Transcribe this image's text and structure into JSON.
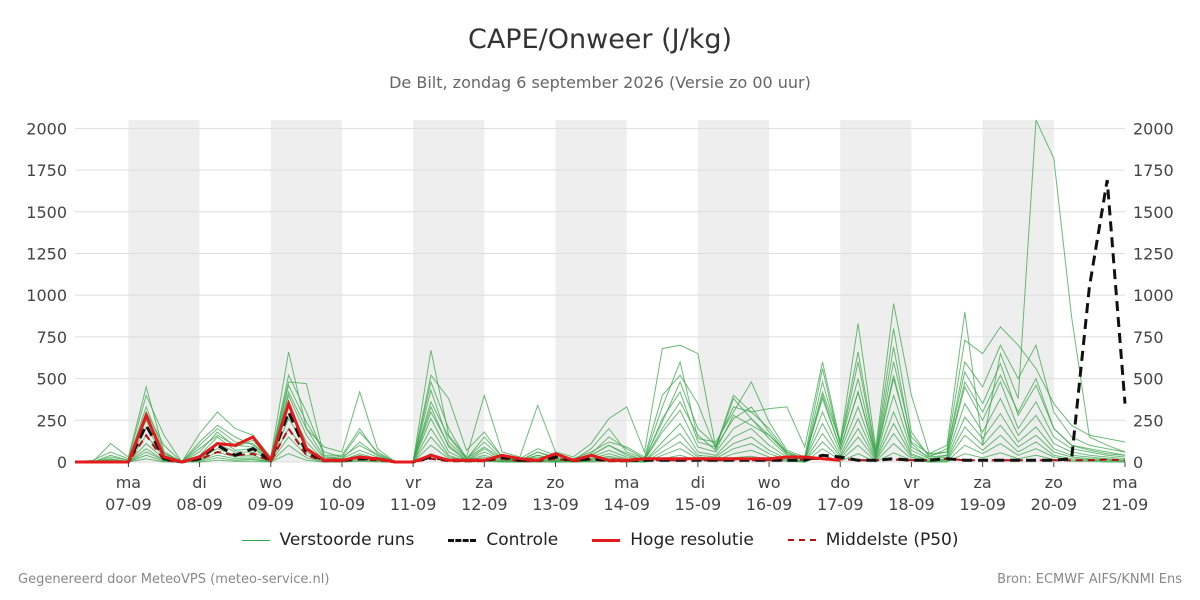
{
  "chart_data": {
    "type": "line",
    "title": "CAPE/Onweer (J/kg)",
    "subtitle": "De Bilt, zondag  6 september 2026 (Versie zo 00 uur)",
    "ylim": [
      0,
      2050
    ],
    "yticks": [
      0,
      250,
      500,
      750,
      1000,
      1250,
      1500,
      1750,
      2000
    ],
    "xlim": [
      -0.75,
      14.0
    ],
    "day_labels": [
      {
        "day": "ma",
        "date": "07-09"
      },
      {
        "day": "di",
        "date": "08-09"
      },
      {
        "day": "wo",
        "date": "09-09"
      },
      {
        "day": "do",
        "date": "10-09"
      },
      {
        "day": "vr",
        "date": "11-09"
      },
      {
        "day": "za",
        "date": "12-09"
      },
      {
        "day": "zo",
        "date": "13-09"
      },
      {
        "day": "ma",
        "date": "14-09"
      },
      {
        "day": "di",
        "date": "15-09"
      },
      {
        "day": "wo",
        "date": "16-09"
      },
      {
        "day": "do",
        "date": "17-09"
      },
      {
        "day": "vr",
        "date": "18-09"
      },
      {
        "day": "za",
        "date": "19-09"
      },
      {
        "day": "zo",
        "date": "20-09"
      },
      {
        "day": "ma",
        "date": "21-09"
      }
    ],
    "shaded_days": [
      0,
      2,
      4,
      6,
      8,
      10,
      12
    ],
    "grid": true,
    "legend_position": "bottom",
    "colors": {
      "ensemble": "#3aa64a",
      "control": "#111111",
      "highres": "#e41a1c",
      "median": "#b01010",
      "shade": "#eeeeee",
      "grid": "#dddddd"
    },
    "highres": {
      "name": "Hoge resolutie",
      "x": [
        -0.75,
        -0.5,
        -0.25,
        0.0,
        0.25,
        0.5,
        0.75,
        1.0,
        1.25,
        1.5,
        1.75,
        2.0,
        2.25,
        2.5,
        2.75,
        3.0,
        3.25,
        3.5,
        3.75,
        4.0,
        4.25,
        4.5,
        4.75,
        5.0,
        5.25,
        5.5,
        5.75,
        6.0,
        6.25,
        6.5,
        6.75,
        7.0,
        7.25,
        7.5,
        7.75,
        8.0,
        8.25,
        8.5,
        8.75,
        9.0,
        9.25,
        9.5,
        9.75,
        10.0
      ],
      "y": [
        0,
        0,
        0,
        0,
        280,
        30,
        0,
        30,
        110,
        100,
        150,
        10,
        350,
        80,
        10,
        10,
        30,
        20,
        0,
        0,
        40,
        10,
        10,
        10,
        40,
        20,
        10,
        50,
        10,
        40,
        10,
        10,
        20,
        20,
        20,
        20,
        20,
        20,
        20,
        20,
        30,
        30,
        20,
        10
      ]
    },
    "control": {
      "name": "Controle",
      "x": [
        -0.75,
        -0.5,
        -0.25,
        0.0,
        0.25,
        0.5,
        0.75,
        1.0,
        1.25,
        1.5,
        1.75,
        2.0,
        2.25,
        2.5,
        2.75,
        3.0,
        3.25,
        3.5,
        3.75,
        4.0,
        4.25,
        4.5,
        4.75,
        5.0,
        5.25,
        5.5,
        5.75,
        6.0,
        6.25,
        6.5,
        6.75,
        7.0,
        7.25,
        7.5,
        7.75,
        8.0,
        8.25,
        8.5,
        8.75,
        9.0,
        9.25,
        9.5,
        9.75,
        10.0,
        10.25,
        10.5,
        10.75,
        11.0,
        11.25,
        11.5,
        11.75,
        12.0,
        12.25,
        12.5,
        12.75,
        13.0,
        13.25,
        13.5,
        13.75,
        14.0
      ],
      "y": [
        0,
        0,
        0,
        0,
        220,
        20,
        0,
        20,
        100,
        40,
        80,
        10,
        300,
        60,
        10,
        10,
        20,
        20,
        0,
        0,
        30,
        10,
        10,
        10,
        30,
        10,
        10,
        30,
        10,
        20,
        10,
        10,
        10,
        10,
        10,
        10,
        10,
        10,
        10,
        10,
        10,
        10,
        40,
        30,
        10,
        10,
        20,
        10,
        10,
        20,
        10,
        10,
        10,
        10,
        10,
        10,
        20,
        1050,
        1690,
        350
      ]
    },
    "median": {
      "name": "Middelste (P50)",
      "x": [
        -0.75,
        -0.5,
        -0.25,
        0.0,
        0.25,
        0.5,
        0.75,
        1.0,
        1.25,
        1.5,
        1.75,
        2.0,
        2.25,
        2.5,
        2.75,
        3.0,
        3.25,
        3.5,
        3.75,
        4.0,
        4.25,
        4.5,
        4.75,
        5.0,
        5.25,
        5.5,
        5.75,
        6.0,
        6.25,
        6.5,
        6.75,
        7.0,
        7.25,
        7.5,
        7.75,
        8.0,
        8.25,
        8.5,
        8.75,
        9.0,
        9.25,
        9.5,
        9.75,
        10.0,
        10.25,
        10.5,
        10.75,
        11.0,
        11.25,
        11.5,
        11.75,
        12.0,
        12.25,
        12.5,
        12.75,
        13.0,
        13.25,
        13.5,
        13.75,
        14.0
      ],
      "y": [
        0,
        0,
        0,
        0,
        160,
        10,
        0,
        15,
        60,
        40,
        50,
        5,
        200,
        40,
        5,
        5,
        15,
        10,
        0,
        0,
        20,
        5,
        5,
        5,
        20,
        5,
        5,
        20,
        5,
        15,
        5,
        5,
        10,
        10,
        10,
        10,
        10,
        10,
        10,
        10,
        10,
        15,
        20,
        20,
        10,
        10,
        15,
        10,
        10,
        20,
        10,
        10,
        10,
        10,
        10,
        10,
        10,
        10,
        15,
        10
      ]
    },
    "ensemble": {
      "name": "Verstoorde runs",
      "x": [
        -0.75,
        -0.5,
        -0.25,
        0.0,
        0.25,
        0.5,
        0.75,
        1.0,
        1.25,
        1.5,
        1.75,
        2.0,
        2.25,
        2.5,
        2.75,
        3.0,
        3.25,
        3.5,
        3.75,
        4.0,
        4.25,
        4.5,
        4.75,
        5.0,
        5.25,
        5.5,
        5.75,
        6.0,
        6.25,
        6.5,
        6.75,
        7.0,
        7.25,
        7.5,
        7.75,
        8.0,
        8.25,
        8.5,
        8.75,
        9.0,
        9.25,
        9.5,
        9.75,
        10.0,
        10.25,
        10.5,
        10.75,
        11.0,
        11.25,
        11.5,
        11.75,
        12.0,
        12.25,
        12.5,
        12.75,
        13.0,
        13.25,
        13.5,
        13.75,
        14.0
      ],
      "members": [
        [
          0,
          0,
          110,
          30,
          450,
          60,
          0,
          170,
          300,
          200,
          160,
          30,
          660,
          200,
          90,
          60,
          420,
          80,
          0,
          0,
          670,
          160,
          30,
          400,
          60,
          30,
          340,
          60,
          30,
          110,
          260,
          330,
          60,
          680,
          700,
          650,
          90,
          400,
          300,
          320,
          330,
          90,
          600,
          120,
          830,
          80,
          950,
          400,
          50,
          100,
          900,
          100,
          650,
          380,
          2050,
          1820,
          870,
          150,
          100,
          60
        ],
        [
          0,
          10,
          60,
          20,
          400,
          160,
          0,
          100,
          200,
          120,
          110,
          20,
          480,
          470,
          30,
          30,
          180,
          60,
          0,
          0,
          520,
          380,
          70,
          180,
          30,
          20,
          80,
          40,
          20,
          60,
          120,
          90,
          30,
          400,
          520,
          350,
          80,
          380,
          260,
          160,
          60,
          20,
          420,
          120,
          660,
          60,
          800,
          180,
          30,
          80,
          730,
          650,
          810,
          700,
          560,
          350,
          220,
          160,
          140,
          120
        ],
        [
          0,
          0,
          30,
          10,
          300,
          100,
          0,
          60,
          180,
          90,
          130,
          10,
          460,
          240,
          60,
          30,
          100,
          40,
          0,
          0,
          480,
          200,
          20,
          150,
          30,
          10,
          60,
          30,
          10,
          80,
          200,
          60,
          20,
          330,
          600,
          140,
          120,
          300,
          480,
          240,
          70,
          30,
          560,
          100,
          600,
          50,
          690,
          120,
          50,
          60,
          540,
          350,
          590,
          280,
          460,
          200,
          100,
          80,
          60,
          40
        ],
        [
          0,
          0,
          20,
          0,
          210,
          40,
          0,
          40,
          150,
          70,
          80,
          10,
          400,
          160,
          20,
          20,
          70,
          30,
          0,
          0,
          430,
          120,
          20,
          90,
          20,
          10,
          40,
          20,
          10,
          40,
          100,
          40,
          10,
          260,
          420,
          120,
          90,
          260,
          330,
          180,
          50,
          20,
          380,
          80,
          420,
          40,
          520,
          90,
          30,
          40,
          450,
          250,
          480,
          200,
          360,
          150,
          80,
          60,
          40,
          30
        ],
        [
          0,
          0,
          10,
          0,
          160,
          30,
          0,
          30,
          110,
          60,
          60,
          10,
          330,
          120,
          10,
          10,
          50,
          20,
          0,
          0,
          330,
          90,
          10,
          60,
          10,
          10,
          30,
          10,
          10,
          30,
          70,
          30,
          10,
          180,
          310,
          90,
          60,
          200,
          260,
          140,
          40,
          10,
          300,
          60,
          330,
          30,
          400,
          70,
          20,
          30,
          350,
          180,
          380,
          160,
          280,
          110,
          60,
          40,
          30,
          20
        ],
        [
          0,
          0,
          5,
          0,
          110,
          20,
          0,
          20,
          80,
          40,
          40,
          5,
          260,
          90,
          10,
          10,
          40,
          15,
          0,
          0,
          260,
          60,
          10,
          40,
          10,
          5,
          20,
          10,
          5,
          20,
          50,
          20,
          5,
          120,
          230,
          60,
          40,
          150,
          200,
          100,
          30,
          10,
          230,
          40,
          260,
          20,
          300,
          50,
          10,
          20,
          270,
          140,
          290,
          120,
          210,
          80,
          40,
          30,
          20,
          10
        ],
        [
          0,
          0,
          5,
          0,
          80,
          10,
          0,
          10,
          60,
          30,
          30,
          5,
          200,
          60,
          5,
          5,
          30,
          10,
          0,
          0,
          200,
          40,
          5,
          30,
          5,
          5,
          15,
          5,
          5,
          15,
          35,
          15,
          5,
          90,
          170,
          40,
          30,
          110,
          150,
          70,
          20,
          5,
          170,
          30,
          200,
          15,
          230,
          40,
          10,
          15,
          210,
          100,
          220,
          90,
          160,
          60,
          30,
          20,
          15,
          10
        ],
        [
          0,
          0,
          0,
          0,
          60,
          10,
          0,
          10,
          40,
          20,
          20,
          0,
          150,
          40,
          5,
          5,
          20,
          10,
          0,
          0,
          150,
          30,
          5,
          20,
          5,
          0,
          10,
          5,
          0,
          10,
          25,
          10,
          0,
          60,
          120,
          30,
          20,
          80,
          110,
          50,
          15,
          5,
          120,
          20,
          150,
          10,
          170,
          30,
          5,
          10,
          160,
          70,
          160,
          60,
          120,
          40,
          20,
          15,
          10,
          5
        ],
        [
          0,
          0,
          0,
          0,
          40,
          5,
          0,
          5,
          25,
          10,
          15,
          0,
          100,
          25,
          0,
          0,
          10,
          5,
          0,
          0,
          100,
          20,
          0,
          10,
          0,
          0,
          5,
          0,
          0,
          5,
          15,
          5,
          0,
          40,
          80,
          20,
          10,
          50,
          70,
          30,
          10,
          0,
          80,
          10,
          100,
          5,
          110,
          20,
          0,
          5,
          100,
          50,
          110,
          40,
          80,
          30,
          10,
          10,
          5,
          0
        ],
        [
          0,
          0,
          0,
          0,
          20,
          0,
          0,
          0,
          10,
          5,
          5,
          0,
          50,
          10,
          0,
          0,
          5,
          0,
          0,
          0,
          50,
          10,
          0,
          5,
          0,
          0,
          0,
          0,
          0,
          0,
          5,
          0,
          0,
          20,
          40,
          10,
          5,
          25,
          35,
          15,
          5,
          0,
          40,
          5,
          50,
          0,
          55,
          10,
          0,
          0,
          50,
          25,
          55,
          20,
          40,
          15,
          5,
          5,
          0,
          0
        ],
        [
          0,
          0,
          40,
          10,
          330,
          60,
          0,
          120,
          220,
          150,
          100,
          20,
          520,
          300,
          40,
          40,
          200,
          50,
          0,
          0,
          360,
          150,
          20,
          120,
          20,
          10,
          60,
          20,
          10,
          50,
          150,
          80,
          20,
          240,
          480,
          200,
          100,
          330,
          300,
          200,
          60,
          20,
          480,
          110,
          500,
          40,
          600,
          150,
          40,
          60,
          600,
          450,
          700,
          500,
          700,
          300,
          150,
          100,
          80,
          60
        ],
        [
          0,
          0,
          15,
          5,
          250,
          50,
          0,
          80,
          160,
          100,
          90,
          10,
          420,
          200,
          30,
          20,
          120,
          40,
          0,
          0,
          300,
          100,
          10,
          80,
          10,
          10,
          40,
          10,
          10,
          40,
          100,
          50,
          10,
          200,
          360,
          160,
          70,
          280,
          220,
          160,
          50,
          10,
          400,
          80,
          420,
          30,
          500,
          110,
          20,
          40,
          480,
          300,
          520,
          300,
          500,
          200,
          100,
          70,
          50,
          40
        ]
      ]
    },
    "legend": [
      {
        "key": "ensemble",
        "label": "Verstoorde runs"
      },
      {
        "key": "control",
        "label": "Controle"
      },
      {
        "key": "highres",
        "label": "Hoge resolutie"
      },
      {
        "key": "median",
        "label": "Middelste (P50)"
      }
    ]
  },
  "footer": {
    "left": "Gegenereerd door MeteoVPS (meteo-service.nl)",
    "right": "Bron: ECMWF AIFS/KNMI Ens"
  }
}
